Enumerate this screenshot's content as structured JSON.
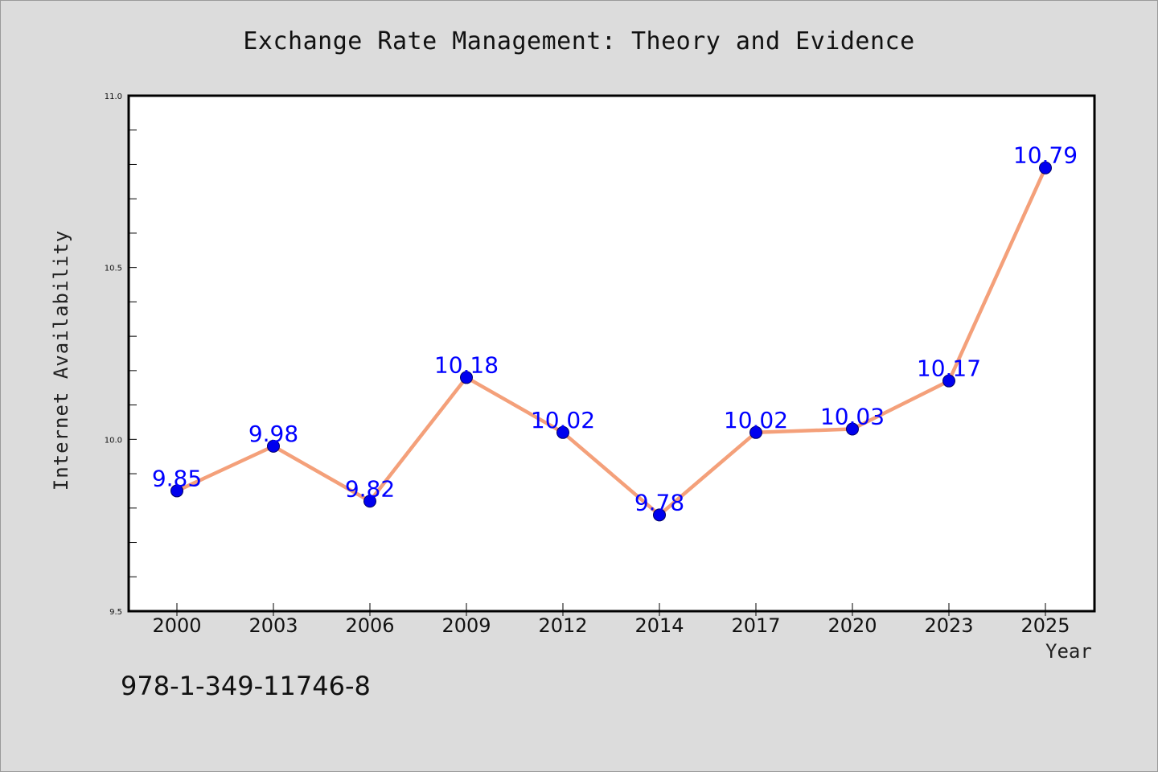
{
  "chart_data": {
    "type": "line",
    "title": "Exchange Rate Management: Theory and Evidence",
    "xlabel": "Year",
    "ylabel": "Internet Availability",
    "categories": [
      "2000",
      "2003",
      "2006",
      "2009",
      "2012",
      "2014",
      "2017",
      "2020",
      "2023",
      "2025"
    ],
    "series": [
      {
        "values": [
          9.85,
          9.98,
          9.82,
          10.18,
          10.02,
          9.78,
          10.02,
          10.03,
          10.17,
          10.79
        ],
        "labels": [
          "9.85",
          "9.98",
          "9.82",
          "10.18",
          "10.02",
          "9.78",
          "10.02",
          "10.03",
          "10.17",
          "10.79"
        ],
        "line_color": "#f4a07a",
        "marker_color": "#0000ee"
      }
    ],
    "ylim": [
      9.5,
      11.0
    ],
    "yticks": [
      9.5,
      10.0,
      10.5,
      11.0
    ],
    "ytick_labels": [
      "9.5",
      "10.0",
      "10.5",
      "11.0"
    ],
    "grid": false,
    "data_label_color": "#0000ff"
  },
  "footer_text": "978-1-349-11746-8"
}
